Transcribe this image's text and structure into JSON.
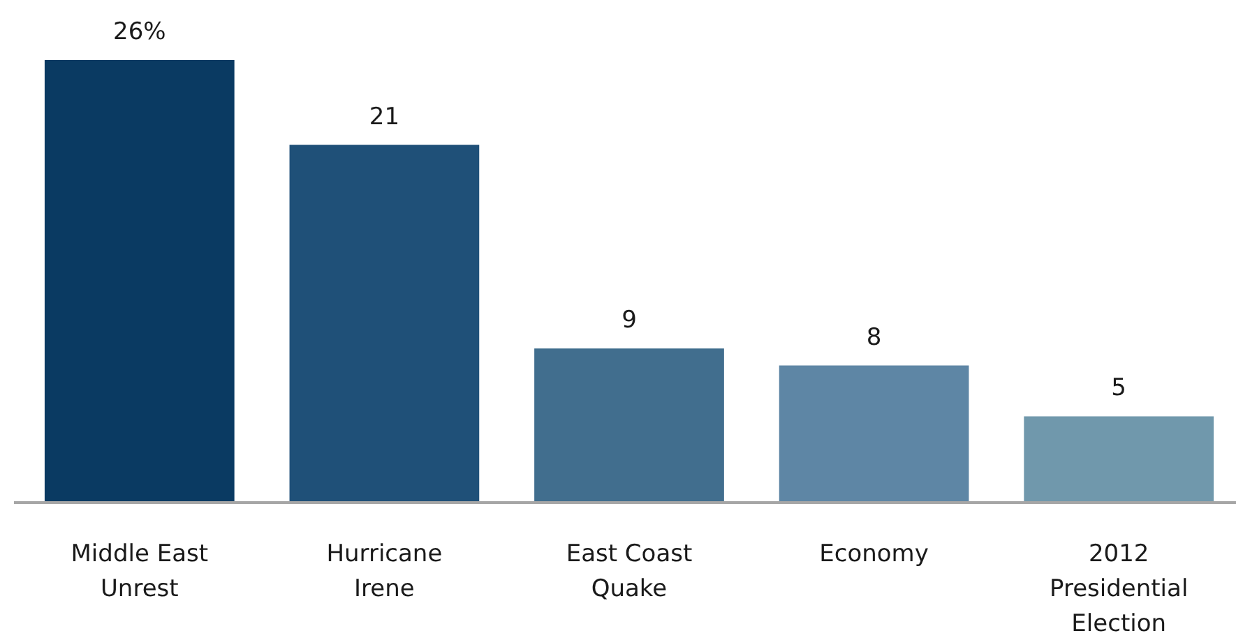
{
  "chart_data": {
    "type": "bar",
    "categories": [
      "Middle East Unrest",
      "Hurricane Irene",
      "East Coast Quake",
      "Economy",
      "2012 Presidential Election"
    ],
    "values": [
      26,
      21,
      9,
      8,
      5
    ],
    "colors": [
      "#0a3a62",
      "#1f5078",
      "#416e8e",
      "#5e86a5",
      "#7098ac"
    ],
    "value_labels": [
      "26%",
      "21",
      "9",
      "8",
      "5"
    ]
  }
}
